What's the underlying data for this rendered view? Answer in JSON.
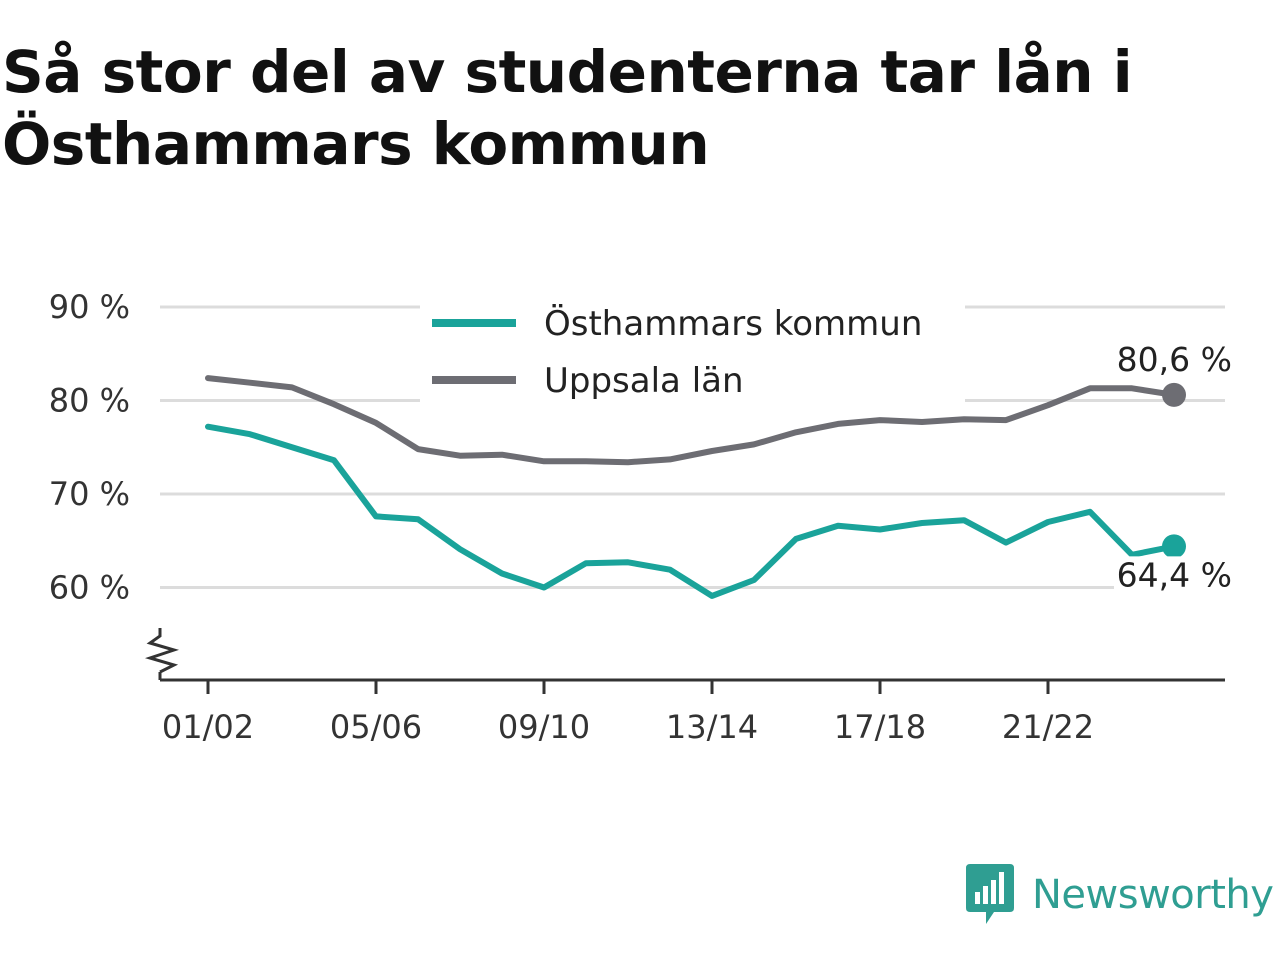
{
  "title": "Så stor del av studenterna tar lån i Östhammars kommun",
  "brand": {
    "name": "Newsworthy",
    "color": "#2f9e92",
    "icon": "newsworthy-chat-bars-icon"
  },
  "chart_data": {
    "type": "line",
    "x": [
      "01/02",
      "02/03",
      "03/04",
      "04/05",
      "05/06",
      "06/07",
      "07/08",
      "08/09",
      "09/10",
      "10/11",
      "11/12",
      "12/13",
      "13/14",
      "14/15",
      "15/16",
      "16/17",
      "17/18",
      "18/19",
      "19/20",
      "20/21",
      "21/22",
      "22/23",
      "23/24",
      "24/25"
    ],
    "x_tick_labels": [
      "01/02",
      "05/06",
      "09/10",
      "13/14",
      "17/18",
      "21/22"
    ],
    "y_ticks": [
      60,
      70,
      80,
      90
    ],
    "y_tick_labels": [
      "60 %",
      "70 %",
      "80 %",
      "90 %"
    ],
    "ylim": [
      50,
      90
    ],
    "y_axis_break": true,
    "grid": true,
    "legend_position": "top-center",
    "series": [
      {
        "name": "Östhammars kommun",
        "color": "#1aa39a",
        "values": [
          77.2,
          76.4,
          75.0,
          73.6,
          67.6,
          67.3,
          64.1,
          61.5,
          60.0,
          62.6,
          62.7,
          61.9,
          59.1,
          60.8,
          65.2,
          66.6,
          66.2,
          66.9,
          67.2,
          64.8,
          67.0,
          68.1,
          63.5,
          64.4
        ],
        "end_label": "64,4 %"
      },
      {
        "name": "Uppsala län",
        "color": "#6d6d73",
        "values": [
          82.4,
          81.9,
          81.4,
          79.6,
          77.6,
          74.8,
          74.1,
          74.2,
          73.5,
          73.5,
          73.4,
          73.7,
          74.6,
          75.3,
          76.6,
          77.5,
          77.9,
          77.7,
          78.0,
          77.9,
          79.5,
          81.3,
          81.3,
          80.6
        ],
        "end_label": "80,6 %"
      }
    ]
  }
}
